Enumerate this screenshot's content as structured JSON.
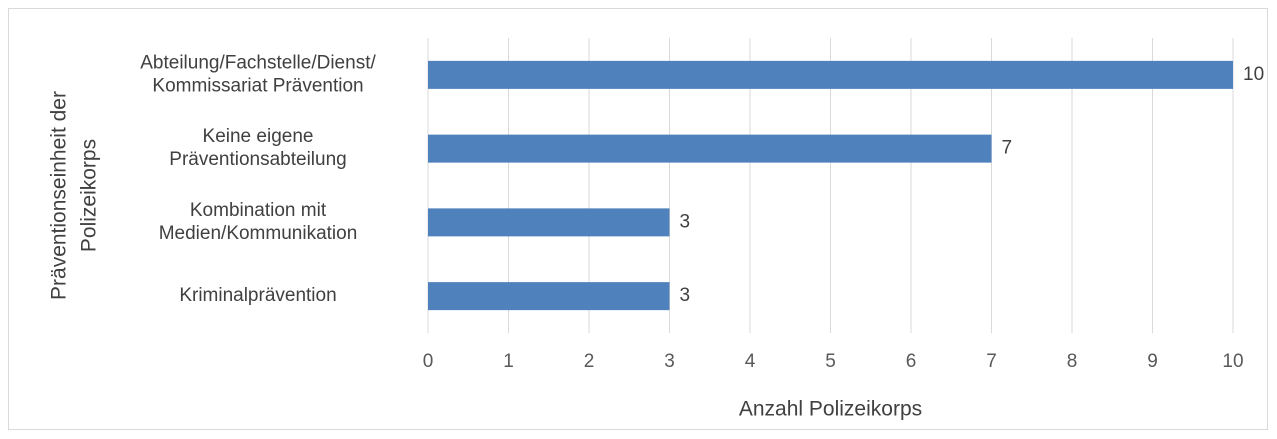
{
  "chart_data": {
    "type": "bar",
    "orientation": "horizontal",
    "categories": [
      [
        "Abteilung/Fachstelle/Dienst/",
        "Kommissariat Prävention"
      ],
      [
        "Keine eigene",
        "Präventionsabteilung"
      ],
      [
        "Kombination mit",
        "Medien/Kommunikation"
      ],
      [
        "Kriminalprävention"
      ]
    ],
    "values": [
      10,
      7,
      3,
      3
    ],
    "color": "#4f81bd",
    "xlabel": "Anzahl Polizeikorps",
    "ylabel": [
      "Präventionseinheit der",
      "Polizeikorps"
    ],
    "xlim": [
      0,
      10
    ],
    "xticks": [
      0,
      1,
      2,
      3,
      4,
      5,
      6,
      7,
      8,
      9,
      10
    ],
    "grid": true
  }
}
